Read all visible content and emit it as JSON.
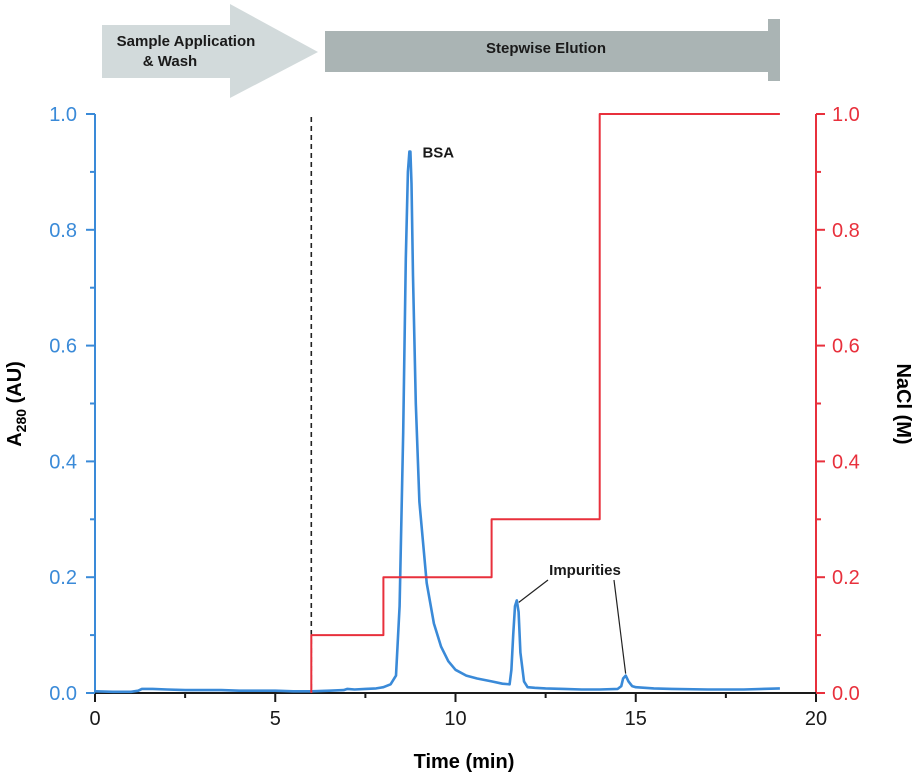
{
  "banners": {
    "sample_line1": "Sample Application",
    "sample_line2": "& Wash",
    "elution": "Stepwise Elution"
  },
  "colors": {
    "absorbance": "#3a8ad8",
    "nacl": "#e8303c",
    "axis": "#1a1a1a",
    "banner_fill": "#b8c2c2",
    "elution_fill": "#a8b3b3"
  },
  "chart_data": {
    "type": "line",
    "xlabel": "Time (min)",
    "ylabel_left_main": "A",
    "ylabel_left_sub": "280",
    "ylabel_left_tail": " (AU)",
    "ylabel_right": "NaCl (M)",
    "xlim": [
      0,
      20
    ],
    "ylim_left": [
      0,
      1.0
    ],
    "ylim_right": [
      0,
      1.0
    ],
    "x_ticks": [
      "0",
      "5",
      "10",
      "15",
      "20"
    ],
    "y_left_ticks": [
      "0.0",
      "0.2",
      "0.4",
      "0.6",
      "0.8",
      "1.0"
    ],
    "y_right_ticks": [
      "0.0",
      "0.2",
      "0.4",
      "0.6",
      "0.8",
      "1.0"
    ],
    "grid": false,
    "injection_line_x": 6,
    "annotations": [
      {
        "text": "BSA",
        "x": 8.75,
        "y": 0.935
      },
      {
        "text": "Impurities",
        "x": 11.7,
        "y": 0.16
      },
      {
        "text": "",
        "x": 14.72,
        "y": 0.03
      }
    ],
    "series": [
      {
        "axis": "left",
        "x": [
          0,
          0.5,
          1.0,
          1.2,
          1.3,
          1.6,
          2.0,
          2.5,
          3.0,
          3.5,
          4.0,
          4.5,
          5.0,
          5.5,
          5.9,
          6.0,
          6.5,
          6.9,
          7.0,
          7.2,
          7.5,
          7.8,
          8.0,
          8.2,
          8.35,
          8.45,
          8.55,
          8.62,
          8.68,
          8.72,
          8.75,
          8.78,
          8.82,
          8.9,
          9.0,
          9.2,
          9.4,
          9.6,
          9.8,
          10.0,
          10.3,
          10.6,
          11.0,
          11.3,
          11.5,
          11.55,
          11.6,
          11.65,
          11.7,
          11.75,
          11.8,
          11.9,
          12.0,
          12.2,
          12.5,
          13.0,
          13.5,
          14.0,
          14.5,
          14.6,
          14.65,
          14.72,
          14.8,
          14.9,
          15.0,
          15.5,
          16.0,
          17.0,
          18.0,
          19.0
        ],
        "y": [
          0.003,
          0.002,
          0.002,
          0.004,
          0.007,
          0.007,
          0.006,
          0.005,
          0.005,
          0.005,
          0.004,
          0.004,
          0.004,
          0.003,
          0.003,
          0.003,
          0.004,
          0.005,
          0.007,
          0.006,
          0.007,
          0.008,
          0.01,
          0.015,
          0.03,
          0.15,
          0.45,
          0.75,
          0.9,
          0.935,
          0.935,
          0.88,
          0.72,
          0.5,
          0.33,
          0.19,
          0.12,
          0.08,
          0.055,
          0.04,
          0.03,
          0.025,
          0.02,
          0.016,
          0.015,
          0.04,
          0.1,
          0.15,
          0.16,
          0.14,
          0.07,
          0.02,
          0.01,
          0.009,
          0.008,
          0.007,
          0.006,
          0.006,
          0.007,
          0.012,
          0.025,
          0.03,
          0.02,
          0.012,
          0.01,
          0.008,
          0.007,
          0.006,
          0.006,
          0.008
        ]
      },
      {
        "axis": "right",
        "x": [
          6,
          6,
          8,
          8,
          11,
          11,
          14,
          14,
          19
        ],
        "y": [
          0,
          0.1,
          0.1,
          0.2,
          0.2,
          0.3,
          0.3,
          1.0,
          1.0
        ]
      }
    ]
  }
}
